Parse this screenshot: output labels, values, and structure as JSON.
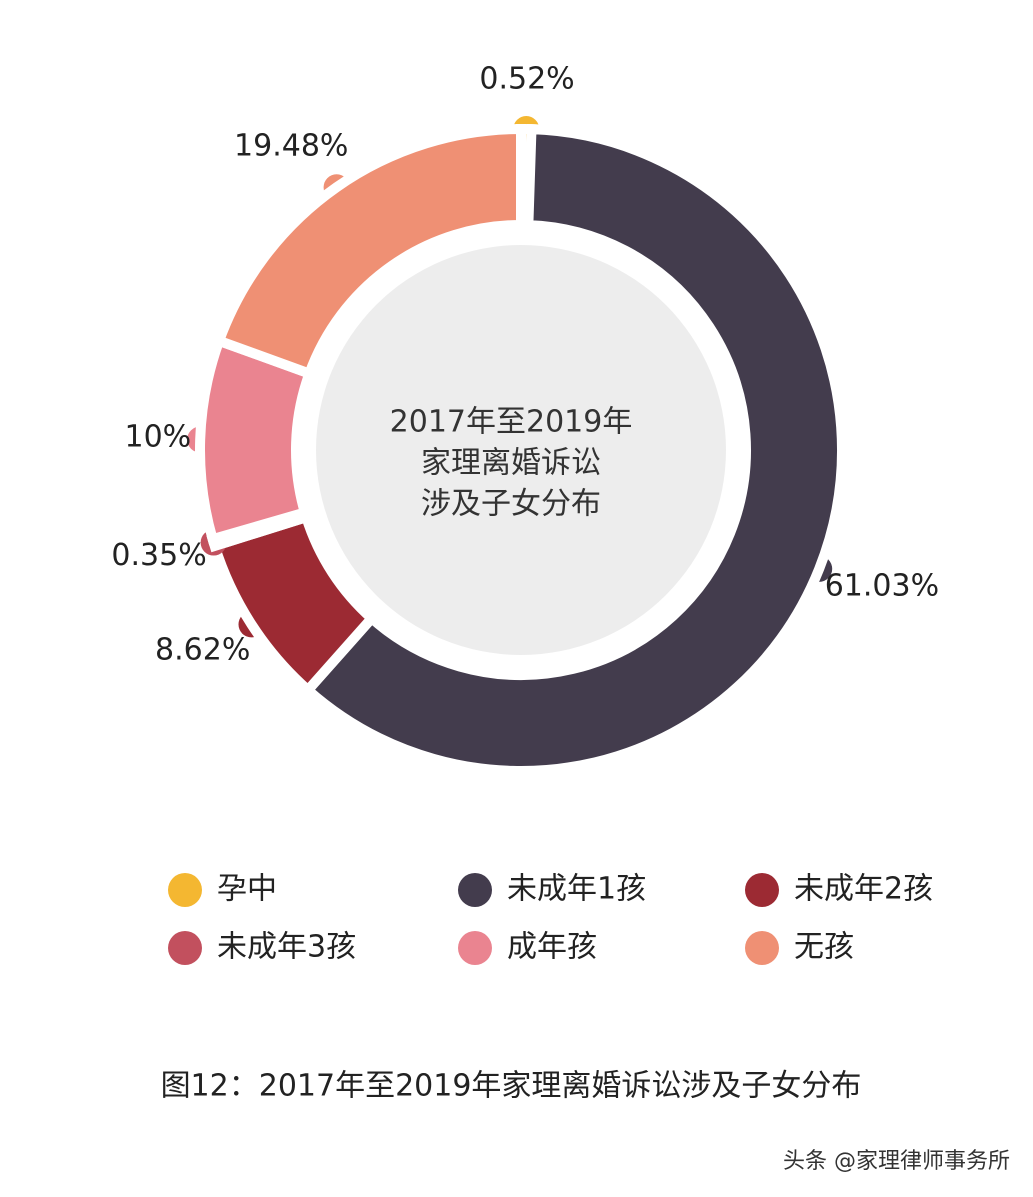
{
  "chart_data": {
    "type": "donut",
    "center_text": [
      "2017年至2019年",
      "家理离婚诉讼",
      "涉及子女分布"
    ],
    "categories": [
      "孕中",
      "未成年1孩",
      "未成年2孩",
      "未成年3孩",
      "成年孩",
      "无孩"
    ],
    "values": [
      0.52,
      61.03,
      8.62,
      0.35,
      10,
      19.48
    ],
    "value_labels": [
      "0.52%",
      "61.03%",
      "8.62%",
      "0.35%",
      "10%",
      "19.48%"
    ],
    "colors": [
      "#f4b731",
      "#433c4d",
      "#9c2a33",
      "#c2505e",
      "#ea8490",
      "#ef9074"
    ],
    "caption": "图12：2017年至2019年家理离婚诉讼涉及子女分布",
    "watermark": "头条 @家理律师事务所"
  }
}
